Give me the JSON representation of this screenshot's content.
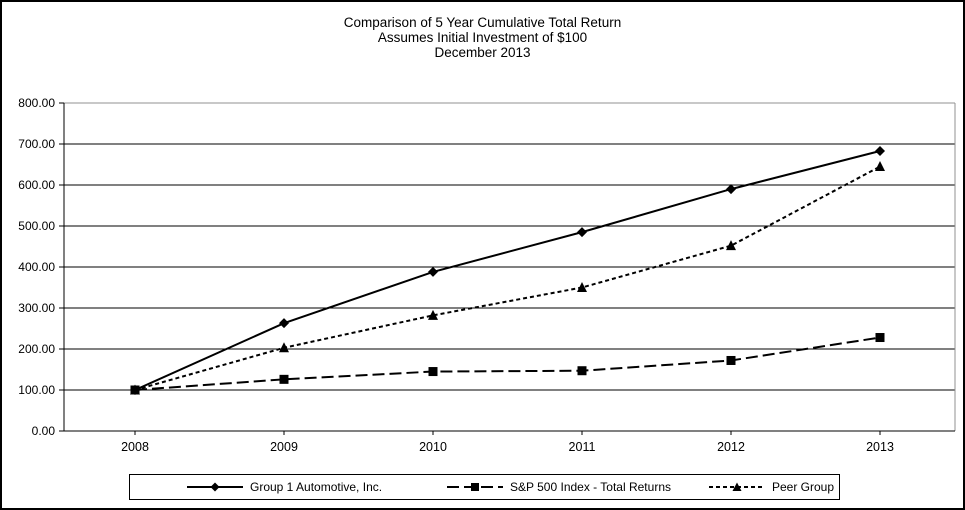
{
  "title": {
    "line1": "Comparison of 5 Year Cumulative Total Return",
    "line2": "Assumes Initial Investment of $100",
    "line3": "December 2013"
  },
  "chart_data": {
    "type": "line",
    "title": "Comparison of 5 Year Cumulative Total Return",
    "subtitle": "Assumes Initial Investment of $100",
    "date_label": "December 2013",
    "categories": [
      "2008",
      "2009",
      "2010",
      "2011",
      "2012",
      "2013"
    ],
    "series": [
      {
        "name": "Group 1 Automotive, Inc.",
        "marker": "diamond",
        "line_style": "solid",
        "values": [
          100.0,
          263.0,
          388.0,
          485.0,
          590.0,
          683.0
        ]
      },
      {
        "name": "S&P 500 Index - Total Returns",
        "marker": "square",
        "line_style": "long-dash",
        "values": [
          100.0,
          126.0,
          145.0,
          147.0,
          172.0,
          228.0
        ]
      },
      {
        "name": "Peer Group",
        "marker": "triangle",
        "line_style": "short-dash",
        "values": [
          100.0,
          203.0,
          282.0,
          350.0,
          452.0,
          645.0
        ]
      }
    ],
    "ylim": [
      0,
      800
    ],
    "y_ticks": [
      {
        "value": 0,
        "label": "0.00"
      },
      {
        "value": 100,
        "label": "100.00"
      },
      {
        "value": 200,
        "label": "200.00"
      },
      {
        "value": 300,
        "label": "300.00"
      },
      {
        "value": 400,
        "label": "400.00"
      },
      {
        "value": 500,
        "label": "500.00"
      },
      {
        "value": 600,
        "label": "600.00"
      },
      {
        "value": 700,
        "label": "700.00"
      },
      {
        "value": 800,
        "label": "800.00"
      }
    ],
    "grid": "horizontal",
    "legend_position": "bottom",
    "colors": {
      "series": "#000000",
      "gridline": "#000000",
      "plot_border": "#909090",
      "background": "#ffffff"
    }
  }
}
